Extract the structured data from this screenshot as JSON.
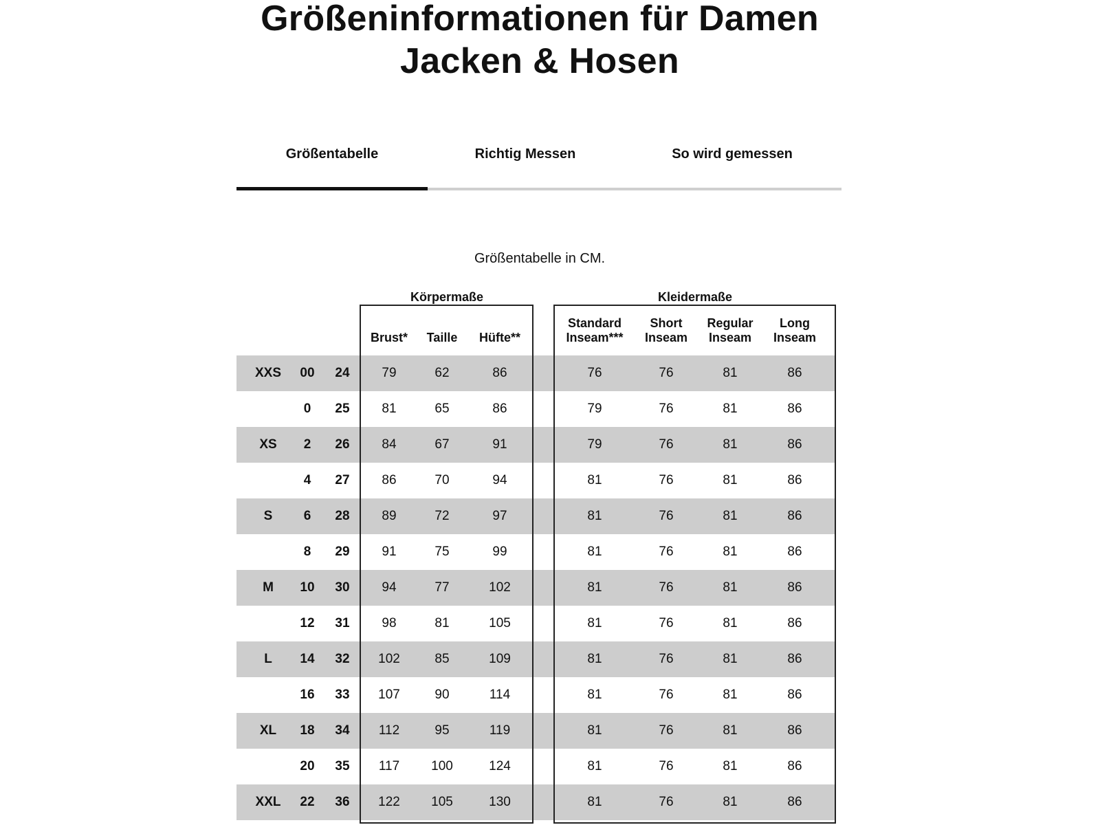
{
  "title": {
    "line1": "Größeninformationen für Damen",
    "line2": "Jacken & Hosen"
  },
  "tabs": [
    {
      "label": "Größentabelle",
      "active": true
    },
    {
      "label": "Richtig Messen",
      "active": false
    },
    {
      "label": "So wird gemessen",
      "active": false
    }
  ],
  "subtitle": "Größentabelle in CM.",
  "groups": {
    "body": "Körpermaße",
    "garment": "Kleidermaße"
  },
  "headers": {
    "brust": "Brust*",
    "taille": "Taille",
    "huefte": "Hüfte**",
    "standard": [
      "Standard",
      "Inseam***"
    ],
    "short": [
      "Short",
      "Inseam"
    ],
    "regular": [
      "Regular",
      "Inseam"
    ],
    "long": [
      "Long",
      "Inseam"
    ]
  },
  "colors": {
    "row_shade": "#cdcdcd",
    "text": "#111111"
  },
  "rows": [
    [
      "XXS",
      "00",
      "24",
      "79",
      "62",
      "86",
      "76",
      "76",
      "81",
      "86"
    ],
    [
      "",
      "0",
      "25",
      "81",
      "65",
      "86",
      "79",
      "76",
      "81",
      "86"
    ],
    [
      "XS",
      "2",
      "26",
      "84",
      "67",
      "91",
      "79",
      "76",
      "81",
      "86"
    ],
    [
      "",
      "4",
      "27",
      "86",
      "70",
      "94",
      "81",
      "76",
      "81",
      "86"
    ],
    [
      "S",
      "6",
      "28",
      "89",
      "72",
      "97",
      "81",
      "76",
      "81",
      "86"
    ],
    [
      "",
      "8",
      "29",
      "91",
      "75",
      "99",
      "81",
      "76",
      "81",
      "86"
    ],
    [
      "M",
      "10",
      "30",
      "94",
      "77",
      "102",
      "81",
      "76",
      "81",
      "86"
    ],
    [
      "",
      "12",
      "31",
      "98",
      "81",
      "105",
      "81",
      "76",
      "81",
      "86"
    ],
    [
      "L",
      "14",
      "32",
      "102",
      "85",
      "109",
      "81",
      "76",
      "81",
      "86"
    ],
    [
      "",
      "16",
      "33",
      "107",
      "90",
      "114",
      "81",
      "76",
      "81",
      "86"
    ],
    [
      "XL",
      "18",
      "34",
      "112",
      "95",
      "119",
      "81",
      "76",
      "81",
      "86"
    ],
    [
      "",
      "20",
      "35",
      "117",
      "100",
      "124",
      "81",
      "76",
      "81",
      "86"
    ],
    [
      "XXL",
      "22",
      "36",
      "122",
      "105",
      "130",
      "81",
      "76",
      "81",
      "86"
    ]
  ]
}
